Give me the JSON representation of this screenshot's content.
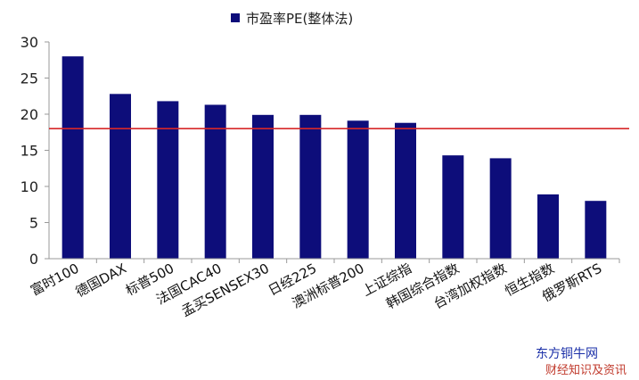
{
  "chart_data": {
    "type": "bar",
    "title": "",
    "xlabel": "",
    "ylabel": "",
    "ylim": [
      0,
      30
    ],
    "yticks": [
      0,
      5,
      10,
      15,
      20,
      25,
      30
    ],
    "grid": false,
    "legend": {
      "position": "top-center",
      "entries": [
        "市盈率PE(整体法)"
      ]
    },
    "categories": [
      "富时100",
      "德国DAX",
      "标普500",
      "法国CAC40",
      "孟买SENSEX30",
      "日经225",
      "澳洲标普200",
      "上证综指",
      "韩国综合指数",
      "台湾加权指数",
      "恒生指数",
      "俄罗斯RTS"
    ],
    "series": [
      {
        "name": "市盈率PE(整体法)",
        "values": [
          28.0,
          22.8,
          21.8,
          21.3,
          19.9,
          19.9,
          19.1,
          18.8,
          14.3,
          13.9,
          8.9,
          8.0
        ],
        "color": "#0d0d7a"
      }
    ],
    "reference_line": {
      "value": 18.0,
      "color": "#d62728"
    }
  },
  "watermark": {
    "line1": "东方铜牛网",
    "line2": "财经知识及资讯"
  }
}
